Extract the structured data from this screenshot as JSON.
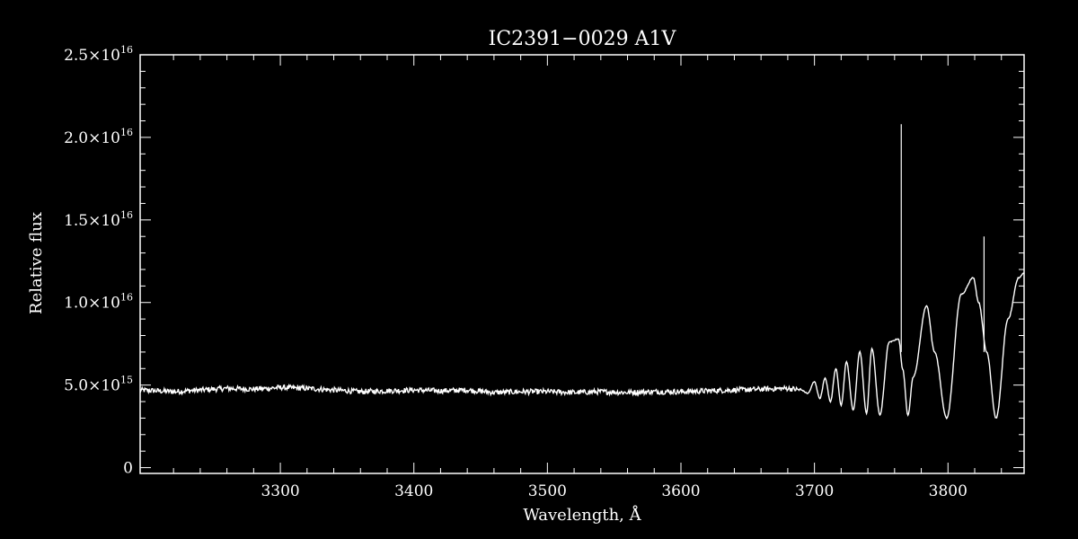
{
  "chart_data": {
    "type": "line",
    "title": "IC2391−0029  A1V",
    "xlabel": "Wavelength, Å",
    "ylabel": "Relative flux",
    "xlim": [
      3195,
      3857
    ],
    "ylim": [
      -350000000000000.0,
      2.5e+16
    ],
    "xticks": [
      {
        "value": 3300,
        "label": "3300"
      },
      {
        "value": 3400,
        "label": "3400"
      },
      {
        "value": 3500,
        "label": "3500"
      },
      {
        "value": 3600,
        "label": "3600"
      },
      {
        "value": 3700,
        "label": "3700"
      },
      {
        "value": 3800,
        "label": "3800"
      }
    ],
    "yticks": [
      {
        "value": 0,
        "mant": "0",
        "exp": ""
      },
      {
        "value": 5000000000000000.0,
        "mant": "5.0×10",
        "exp": "15"
      },
      {
        "value": 1e+16,
        "mant": "1.0×10",
        "exp": "16"
      },
      {
        "value": 1.5e+16,
        "mant": "1.5×10",
        "exp": "16"
      },
      {
        "value": 2e+16,
        "mant": "2.0×10",
        "exp": "16"
      },
      {
        "value": 2.5e+16,
        "mant": "2.5×10",
        "exp": "16"
      }
    ],
    "grid": false,
    "colors": {
      "background": "#000000",
      "foreground": "#ffffff"
    },
    "series": [
      {
        "x": [
          3195,
          3220,
          3240,
          3260,
          3280,
          3300,
          3320,
          3340,
          3360,
          3380,
          3400,
          3420,
          3440,
          3460,
          3480,
          3500,
          3520,
          3540,
          3560,
          3580,
          3600,
          3620,
          3640,
          3660,
          3680,
          3690,
          3695,
          3700,
          3704,
          3708,
          3712,
          3716,
          3720,
          3724,
          3729,
          3734,
          3739,
          3743,
          3749,
          3756,
          3763,
          3766,
          3770,
          3774,
          3784,
          3790,
          3799,
          3810,
          3819,
          3823,
          3829,
          3836,
          3845,
          3853,
          3857
        ],
        "y": [
          4700000000000000.0,
          4600000000000000.0,
          4700000000000000.0,
          4800000000000000.0,
          4750000000000000.0,
          4850000000000000.0,
          4800000000000000.0,
          4700000000000000.0,
          4600000000000000.0,
          4650000000000000.0,
          4700000000000000.0,
          4650000000000000.0,
          4700000000000000.0,
          4550000000000000.0,
          4600000000000000.0,
          4600000000000000.0,
          4550000000000000.0,
          4600000000000000.0,
          4550000000000000.0,
          4600000000000000.0,
          4600000000000000.0,
          4650000000000000.0,
          4700000000000000.0,
          4750000000000000.0,
          4800000000000000.0,
          4700000000000000.0,
          4500000000000000.0,
          5200000000000000.0,
          4200000000000000.0,
          5400000000000000.0,
          4000000000000000.0,
          6000000000000000.0,
          3800000000000000.0,
          6400000000000000.0,
          3500000000000000.0,
          7000000000000000.0,
          3300000000000000.0,
          7200000000000000.0,
          3200000000000000.0,
          7600000000000000.0,
          7800000000000000.0,
          6000000000000000.0,
          3200000000000000.0,
          5500000000000000.0,
          9800000000000000.0,
          7000000000000000.0,
          3000000000000000.0,
          1.05e+16,
          1.15e+16,
          1e+16,
          7000000000000000.0,
          3000000000000000.0,
          9000000000000000.0,
          1.15e+16,
          1.18e+16
        ]
      }
    ],
    "spikes": [
      {
        "x": 3765,
        "y": 2.08e+16
      },
      {
        "x": 3827,
        "y": 1.4e+16
      }
    ]
  }
}
